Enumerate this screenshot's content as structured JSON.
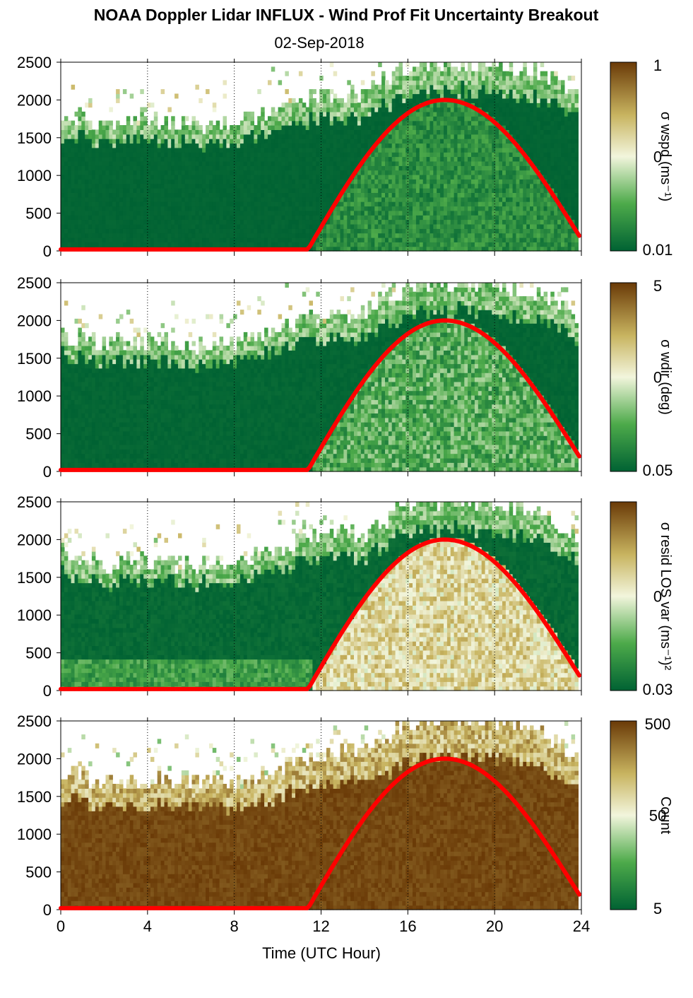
{
  "title": "NOAA Doppler Lidar INFLUX - Wind Prof Fit Uncertainty Breakout",
  "subtitle": "02-Sep-2018",
  "xlabel": "Time (UTC Hour)",
  "colors": {
    "dark_green": "#006233",
    "light": "#f2f5dc",
    "dark_brown": "#6a3a07",
    "curve": "#ff0000",
    "missing": "#ffffff"
  },
  "chart_data": [
    {
      "type": "heatmap",
      "panel": "wspd",
      "x": {
        "range": [
          0,
          24
        ],
        "ticks": [
          0,
          4,
          8,
          12,
          16,
          20,
          24
        ],
        "grid": "dotted",
        "tick_labels_shown": false
      },
      "y": {
        "range": [
          0,
          2500
        ],
        "ticks": [
          0,
          500,
          1000,
          1500,
          2000,
          2500
        ]
      },
      "colorbar": {
        "label": "σ wspd (ms⁻¹)",
        "scale": "log",
        "ticks": [
          "1",
          "0",
          "0.01"
        ]
      },
      "cloud_top_m": [
        [
          0,
          1800
        ],
        [
          2,
          1650
        ],
        [
          4,
          1700
        ],
        [
          6,
          1650
        ],
        [
          8,
          1650
        ],
        [
          10,
          1850
        ],
        [
          12,
          2050
        ],
        [
          14,
          2050
        ],
        [
          16,
          2450
        ],
        [
          18,
          2500
        ],
        [
          20,
          2450
        ],
        [
          22,
          2350
        ],
        [
          24,
          1950
        ]
      ],
      "curve": {
        "shape": "arc",
        "zero_until_h": 11.4,
        "peak_h": 17.7,
        "peak_m": 2000,
        "end_h": 23.9,
        "end_m": 200
      }
    },
    {
      "type": "heatmap",
      "panel": "wdir",
      "x": {
        "range": [
          0,
          24
        ],
        "ticks": [
          0,
          4,
          8,
          12,
          16,
          20,
          24
        ],
        "grid": "dotted",
        "tick_labels_shown": false
      },
      "y": {
        "range": [
          0,
          2500
        ],
        "ticks": [
          0,
          500,
          1000,
          1500,
          2000,
          2500
        ]
      },
      "colorbar": {
        "label": "σ wdir (deg)",
        "scale": "log",
        "ticks": [
          "5",
          "0",
          "0.05"
        ]
      },
      "cloud_top_m": [
        [
          0,
          1800
        ],
        [
          2,
          1650
        ],
        [
          4,
          1700
        ],
        [
          6,
          1650
        ],
        [
          8,
          1650
        ],
        [
          10,
          1850
        ],
        [
          12,
          2050
        ],
        [
          14,
          2050
        ],
        [
          16,
          2450
        ],
        [
          18,
          2500
        ],
        [
          20,
          2450
        ],
        [
          22,
          2350
        ],
        [
          24,
          1950
        ]
      ],
      "curve": {
        "shape": "arc",
        "zero_until_h": 11.4,
        "peak_h": 17.7,
        "peak_m": 2000,
        "end_h": 23.9,
        "end_m": 200
      }
    },
    {
      "type": "heatmap",
      "panel": "resid",
      "x": {
        "range": [
          0,
          24
        ],
        "ticks": [
          0,
          4,
          8,
          12,
          16,
          20,
          24
        ],
        "grid": "dotted",
        "tick_labels_shown": false
      },
      "y": {
        "range": [
          0,
          2500
        ],
        "ticks": [
          0,
          500,
          1000,
          1500,
          2000,
          2500
        ]
      },
      "colorbar": {
        "label": "σ resid LOS var (ms⁻¹)²",
        "scale": "log",
        "ticks": [
          "",
          "0",
          "0.03"
        ]
      },
      "cloud_top_m": [
        [
          0,
          1800
        ],
        [
          2,
          1650
        ],
        [
          4,
          1700
        ],
        [
          6,
          1650
        ],
        [
          8,
          1650
        ],
        [
          10,
          1850
        ],
        [
          12,
          2050
        ],
        [
          14,
          2050
        ],
        [
          16,
          2450
        ],
        [
          18,
          2500
        ],
        [
          20,
          2450
        ],
        [
          22,
          2350
        ],
        [
          24,
          1950
        ]
      ],
      "curve": {
        "shape": "arc",
        "zero_until_h": 11.4,
        "peak_h": 17.7,
        "peak_m": 2000,
        "end_h": 23.9,
        "end_m": 200
      }
    },
    {
      "type": "heatmap",
      "panel": "count",
      "x": {
        "range": [
          0,
          24
        ],
        "ticks": [
          0,
          4,
          8,
          12,
          16,
          20,
          24
        ],
        "grid": "dotted",
        "tick_labels_shown": true
      },
      "y": {
        "range": [
          0,
          2500
        ],
        "ticks": [
          0,
          500,
          1000,
          1500,
          2000,
          2500
        ]
      },
      "colorbar": {
        "label": "Count",
        "scale": "log",
        "ticks": [
          "500",
          "50",
          "5"
        ]
      },
      "cloud_top_m": [
        [
          0,
          1800
        ],
        [
          2,
          1650
        ],
        [
          4,
          1700
        ],
        [
          6,
          1650
        ],
        [
          8,
          1650
        ],
        [
          10,
          1850
        ],
        [
          12,
          2050
        ],
        [
          14,
          2050
        ],
        [
          16,
          2450
        ],
        [
          18,
          2500
        ],
        [
          20,
          2450
        ],
        [
          22,
          2350
        ],
        [
          24,
          1950
        ]
      ],
      "curve": {
        "shape": "arc",
        "zero_until_h": 11.4,
        "peak_h": 17.7,
        "peak_m": 2000,
        "end_h": 23.9,
        "end_m": 200
      }
    }
  ]
}
